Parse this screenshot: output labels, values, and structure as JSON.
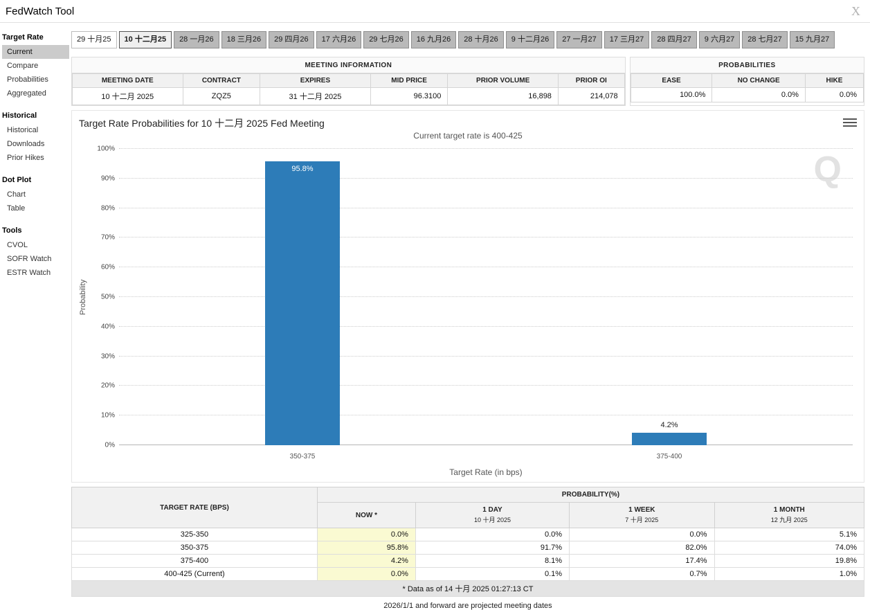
{
  "window": {
    "title": "FedWatch Tool",
    "close": "X"
  },
  "sidebar": {
    "sections": [
      {
        "title": "Target Rate",
        "items": [
          {
            "label": "Current",
            "selected": true
          },
          {
            "label": "Compare"
          },
          {
            "label": "Probabilities"
          },
          {
            "label": "Aggregated"
          }
        ]
      },
      {
        "title": "Historical",
        "items": [
          {
            "label": "Historical"
          },
          {
            "label": "Downloads"
          },
          {
            "label": "Prior Hikes"
          }
        ]
      },
      {
        "title": "Dot Plot",
        "items": [
          {
            "label": "Chart"
          },
          {
            "label": "Table"
          }
        ]
      },
      {
        "title": "Tools",
        "items": [
          {
            "label": "CVOL"
          },
          {
            "label": "SOFR Watch"
          },
          {
            "label": "ESTR Watch"
          }
        ]
      }
    ]
  },
  "tabs": [
    {
      "label": "29 十月25",
      "state": "past"
    },
    {
      "label": "10 十二月25",
      "state": "selected"
    },
    {
      "label": "28 一月26",
      "state": "future"
    },
    {
      "label": "18 三月26",
      "state": "future"
    },
    {
      "label": "29 四月26",
      "state": "future"
    },
    {
      "label": "17 六月26",
      "state": "future"
    },
    {
      "label": "29 七月26",
      "state": "future"
    },
    {
      "label": "16 九月26",
      "state": "future"
    },
    {
      "label": "28 十月26",
      "state": "future"
    },
    {
      "label": "9 十二月26",
      "state": "future"
    },
    {
      "label": "27 一月27",
      "state": "future"
    },
    {
      "label": "17 三月27",
      "state": "future"
    },
    {
      "label": "28 四月27",
      "state": "future"
    },
    {
      "label": "9 六月27",
      "state": "future"
    },
    {
      "label": "28 七月27",
      "state": "future"
    },
    {
      "label": "15 九月27",
      "state": "future"
    }
  ],
  "meeting_info": {
    "title": "MEETING INFORMATION",
    "columns": [
      "MEETING DATE",
      "CONTRACT",
      "EXPIRES",
      "MID PRICE",
      "PRIOR VOLUME",
      "PRIOR OI"
    ],
    "values": [
      "10 十二月 2025",
      "ZQZ5",
      "31 十二月 2025",
      "96.3100",
      "16,898",
      "214,078"
    ]
  },
  "probabilities_box": {
    "title": "PROBABILITIES",
    "columns": [
      "EASE",
      "NO CHANGE",
      "HIKE"
    ],
    "values": [
      "100.0%",
      "0.0%",
      "0.0%"
    ]
  },
  "chart_data": {
    "type": "bar",
    "title": "Target Rate Probabilities for 10 十二月 2025 Fed Meeting",
    "subtitle": "Current target rate is 400-425",
    "categories": [
      "350-375",
      "375-400"
    ],
    "values": [
      95.8,
      4.2
    ],
    "labels": [
      "95.8%",
      "4.2%"
    ],
    "xlabel": "Target Rate (in bps)",
    "ylabel": "Probability",
    "ylim": [
      0,
      100
    ],
    "ytick_step": 10,
    "ytick_suffix": "%",
    "grid": "dotted-horizontal",
    "legend": "none",
    "bar_color": "#2d7cb8",
    "watermark": "Q"
  },
  "prob_table": {
    "col1_header": "TARGET RATE (BPS)",
    "group_header": "PROBABILITY(%)",
    "sub_headers": [
      {
        "line1": "NOW *",
        "line2": ""
      },
      {
        "line1": "1 DAY",
        "line2": "10 十月 2025"
      },
      {
        "line1": "1 WEEK",
        "line2": "7 十月 2025"
      },
      {
        "line1": "1 MONTH",
        "line2": "12 九月 2025"
      }
    ],
    "rows": [
      {
        "rate": "325-350",
        "now": "0.0%",
        "day": "0.0%",
        "week": "0.0%",
        "month": "5.1%"
      },
      {
        "rate": "350-375",
        "now": "95.8%",
        "day": "91.7%",
        "week": "82.0%",
        "month": "74.0%"
      },
      {
        "rate": "375-400",
        "now": "4.2%",
        "day": "8.1%",
        "week": "17.4%",
        "month": "19.8%"
      },
      {
        "rate": "400-425 (Current)",
        "now": "0.0%",
        "day": "0.1%",
        "week": "0.7%",
        "month": "1.0%"
      }
    ],
    "footnote": "* Data as of 14 十月 2025 01:27:13 CT"
  },
  "footer_note": "2026/1/1 and forward are projected meeting dates",
  "colors": {
    "bar": "#2d7cb8",
    "now_column_bg": "#fafad2",
    "selected_nav_bg": "#cbcbcb",
    "tab_future_bg": "#b9b9b9"
  }
}
